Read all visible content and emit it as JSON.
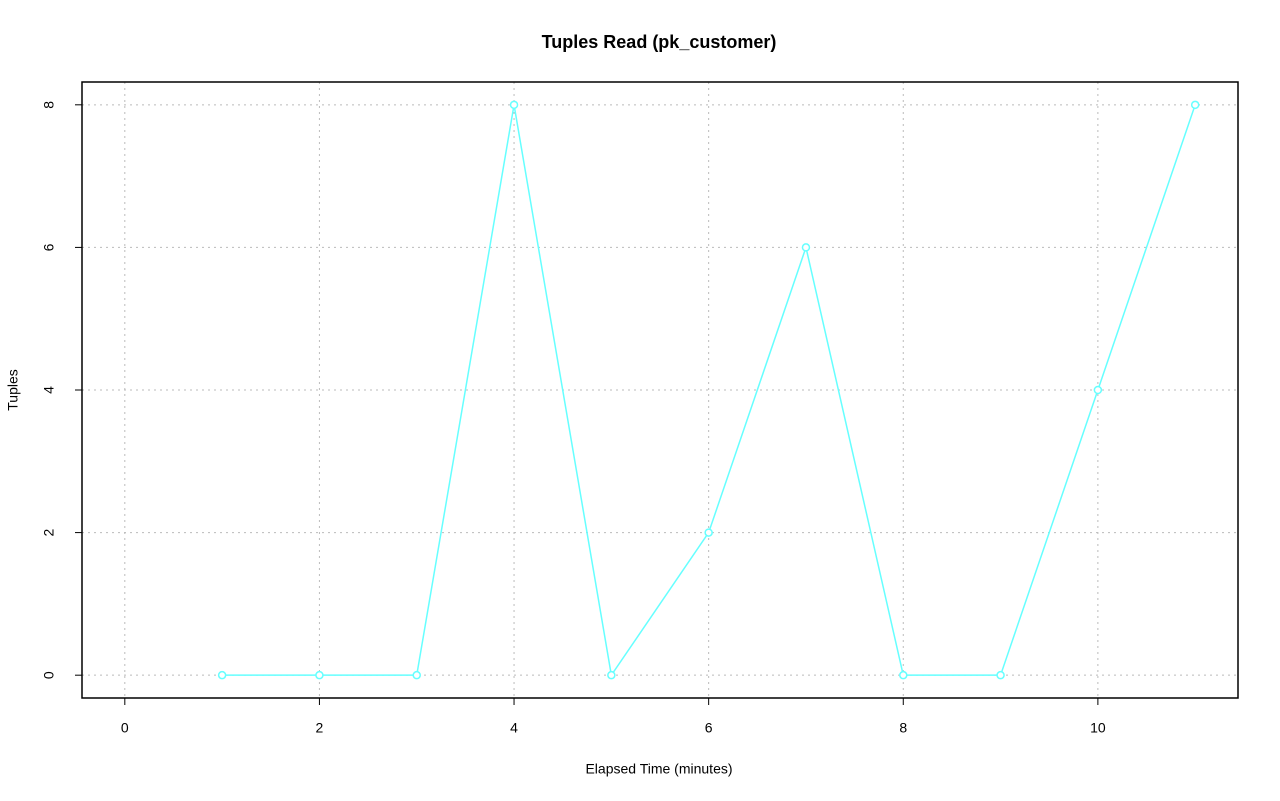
{
  "chart_data": {
    "type": "line",
    "title": "Tuples Read (pk_customer)",
    "x_label": "Elapsed Time (minutes)",
    "y_label": "Tuples",
    "x": [
      1,
      2,
      3,
      4,
      5,
      6,
      7,
      8,
      9,
      10,
      11
    ],
    "series": [
      {
        "name": "pk_customer",
        "color": "#66ffff",
        "values": [
          0,
          0,
          0,
          8,
          0,
          2,
          6,
          0,
          0,
          4,
          8
        ]
      }
    ],
    "xlim": [
      -0.44,
      11.44
    ],
    "xticks": [
      0,
      2,
      4,
      6,
      8,
      10
    ],
    "ylim": [
      -0.32,
      8.32
    ],
    "yticks": [
      0,
      2,
      4,
      6,
      8
    ],
    "grid": true
  }
}
